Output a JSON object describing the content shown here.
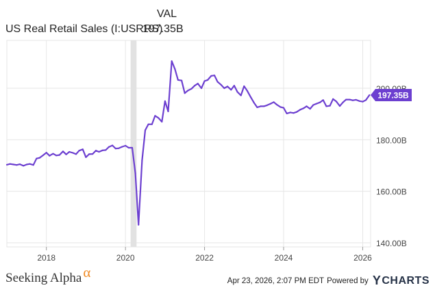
{
  "legend": {
    "column_header": "VAL",
    "series_name": "US Real Retail Sales (I:USRRS)",
    "series_value": "197.35B"
  },
  "footer": {
    "brand_left": "Seeking Alpha",
    "brand_left_symbol": "α",
    "timestamp": "Apr 23, 2026, 2:07 PM EDT",
    "powered_by": "Powered by",
    "brand_right": "CHARTS",
    "brand_right_mark": "Y"
  },
  "colors": {
    "line": "#6c3fd0",
    "grid": "#e6e6e6",
    "recession_band": "#e2e2e2",
    "badge_bg": "#6c3fd0",
    "badge_text": "#ffffff",
    "axis_text": "#444444",
    "alpha_accent": "#f08a24"
  },
  "chart_data": {
    "type": "line",
    "title": "",
    "xlabel": "",
    "ylabel": "",
    "x_range": [
      2017.0,
      2026.2
    ],
    "ylim": [
      140,
      200
    ],
    "x_ticks": [
      {
        "value": 2018,
        "label": "2018"
      },
      {
        "value": 2020,
        "label": "2020"
      },
      {
        "value": 2022,
        "label": "2022"
      },
      {
        "value": 2024,
        "label": "2024"
      },
      {
        "value": 2026,
        "label": "2026"
      }
    ],
    "y_ticks": [
      {
        "value": 140,
        "label": "140.00B"
      },
      {
        "value": 160,
        "label": "160.00B"
      },
      {
        "value": 180,
        "label": "180.00B"
      },
      {
        "value": 200,
        "label": "200.00B"
      }
    ],
    "grid": true,
    "y_axis_side": "right",
    "shaded_periods": [
      {
        "start": 2020.13,
        "end": 2020.28,
        "meaning": "recession"
      }
    ],
    "last_value": {
      "value": 197.35,
      "label": "197.35B"
    },
    "series": [
      {
        "name": "US Real Retail Sales (I:USRRS)",
        "x": [
          2017.0,
          2017.08,
          2017.17,
          2017.25,
          2017.33,
          2017.42,
          2017.5,
          2017.58,
          2017.67,
          2017.75,
          2017.83,
          2017.92,
          2018.0,
          2018.08,
          2018.17,
          2018.25,
          2018.33,
          2018.42,
          2018.5,
          2018.58,
          2018.67,
          2018.75,
          2018.83,
          2018.92,
          2019.0,
          2019.08,
          2019.17,
          2019.25,
          2019.33,
          2019.42,
          2019.5,
          2019.58,
          2019.67,
          2019.75,
          2019.83,
          2019.92,
          2020.0,
          2020.08,
          2020.17,
          2020.25,
          2020.33,
          2020.42,
          2020.5,
          2020.58,
          2020.67,
          2020.75,
          2020.83,
          2020.92,
          2021.0,
          2021.08,
          2021.17,
          2021.25,
          2021.33,
          2021.42,
          2021.5,
          2021.58,
          2021.67,
          2021.75,
          2021.83,
          2021.92,
          2022.0,
          2022.08,
          2022.17,
          2022.25,
          2022.33,
          2022.42,
          2022.5,
          2022.58,
          2022.67,
          2022.75,
          2022.83,
          2022.92,
          2023.0,
          2023.08,
          2023.17,
          2023.25,
          2023.33,
          2023.42,
          2023.5,
          2023.58,
          2023.67,
          2023.75,
          2023.83,
          2023.92,
          2024.0,
          2024.08,
          2024.17,
          2024.25,
          2024.33,
          2024.42,
          2024.5,
          2024.58,
          2024.67,
          2024.75,
          2024.83,
          2024.92,
          2025.0,
          2025.08,
          2025.17,
          2025.25,
          2025.33,
          2025.42,
          2025.5,
          2025.58,
          2025.67,
          2025.75,
          2025.83,
          2025.92,
          2026.0,
          2026.08,
          2026.17
        ],
        "y": [
          170.3,
          170.6,
          170.4,
          170.2,
          170.5,
          169.9,
          170.4,
          170.6,
          170.2,
          172.7,
          173.0,
          174.0,
          175.0,
          173.8,
          174.6,
          173.9,
          174.1,
          175.5,
          174.3,
          175.3,
          174.9,
          174.4,
          175.8,
          176.3,
          173.2,
          174.4,
          174.5,
          175.8,
          175.3,
          175.9,
          176.0,
          177.2,
          177.8,
          176.6,
          176.7,
          177.3,
          177.7,
          176.9,
          176.9,
          167.0,
          147.0,
          172.0,
          183.7,
          186.0,
          186.0,
          189.3,
          188.5,
          187.0,
          195.0,
          191.0,
          210.5,
          207.5,
          203.2,
          203.0,
          198.1,
          199.1,
          199.8,
          201.0,
          201.8,
          200.0,
          202.8,
          203.2,
          204.8,
          205.0,
          202.5,
          201.3,
          200.0,
          200.7,
          199.4,
          201.0,
          198.6,
          197.2,
          200.8,
          199.0,
          196.5,
          194.4,
          192.6,
          193.0,
          193.0,
          193.4,
          194.0,
          194.6,
          193.6,
          192.7,
          192.4,
          190.2,
          190.6,
          190.4,
          190.8,
          191.7,
          192.2,
          193.0,
          192.0,
          193.5,
          194.0,
          194.5,
          195.4,
          193.0,
          193.2,
          195.8,
          194.9,
          193.1,
          194.5,
          195.6,
          195.6,
          195.3,
          195.5,
          195.0,
          194.8,
          195.4,
          197.35
        ]
      }
    ]
  }
}
